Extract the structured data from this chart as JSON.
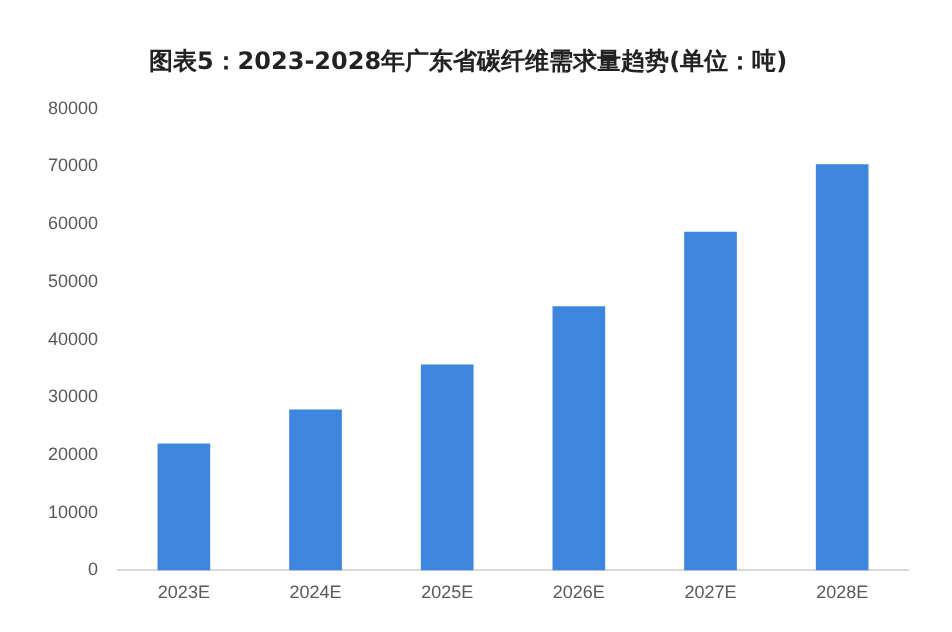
{
  "chart_data": {
    "type": "bar",
    "title": "图表5：2023-2028年广东省碳纤维需求量趋势(单位：吨)",
    "categories": [
      "2023E",
      "2024E",
      "2025E",
      "2026E",
      "2027E",
      "2028E"
    ],
    "values": [
      22000,
      27900,
      35700,
      45800,
      58700,
      70400
    ],
    "color": "#3d85de",
    "ylim": [
      0,
      80000
    ],
    "yticks": [
      0,
      10000,
      20000,
      30000,
      40000,
      50000,
      60000,
      70000,
      80000
    ],
    "grid": false,
    "legend": false
  }
}
